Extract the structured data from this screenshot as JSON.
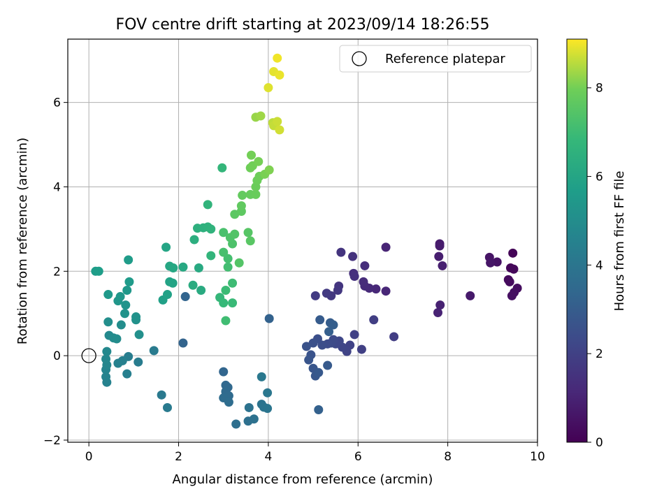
{
  "chart_data": {
    "type": "scatter",
    "title": "FOV centre drift starting at 2023/09/14 18:26:55",
    "xlabel": "Angular distance from reference (arcmin)",
    "ylabel": "Rotation from reference (arcmin)",
    "xlim": [
      -0.47,
      10
    ],
    "ylim": [
      -2.05,
      7.5
    ],
    "xticks": [
      0,
      2,
      4,
      6,
      8,
      10
    ],
    "yticks": [
      -2,
      0,
      2,
      4,
      6
    ],
    "grid": true,
    "legend": {
      "position": "top-right",
      "entries": [
        "Reference platepar"
      ]
    },
    "reference_point": {
      "x": 0,
      "y": 0
    },
    "colorbar": {
      "label": "Hours from first FF file",
      "colormap": "viridis",
      "range": [
        0,
        9.1
      ],
      "ticks": [
        0,
        2,
        4,
        6,
        8
      ]
    },
    "points": [
      {
        "x": 9.45,
        "y": 2.43,
        "c": 0.1
      },
      {
        "x": 9.4,
        "y": 2.08,
        "c": 0.15
      },
      {
        "x": 9.47,
        "y": 2.05,
        "c": 0.2
      },
      {
        "x": 9.35,
        "y": 1.8,
        "c": 0.25
      },
      {
        "x": 9.38,
        "y": 1.75,
        "c": 0.3
      },
      {
        "x": 9.55,
        "y": 1.6,
        "c": 0.35
      },
      {
        "x": 9.48,
        "y": 1.5,
        "c": 0.4
      },
      {
        "x": 9.43,
        "y": 1.42,
        "c": 0.45
      },
      {
        "x": 9.1,
        "y": 2.22,
        "c": 0.5
      },
      {
        "x": 8.93,
        "y": 2.33,
        "c": 0.55
      },
      {
        "x": 8.95,
        "y": 2.2,
        "c": 0.6
      },
      {
        "x": 8.5,
        "y": 1.42,
        "c": 0.7
      },
      {
        "x": 7.82,
        "y": 2.65,
        "c": 0.75
      },
      {
        "x": 7.82,
        "y": 2.6,
        "c": 0.8
      },
      {
        "x": 7.8,
        "y": 2.35,
        "c": 0.85
      },
      {
        "x": 7.88,
        "y": 2.13,
        "c": 0.9
      },
      {
        "x": 7.83,
        "y": 1.2,
        "c": 0.95
      },
      {
        "x": 7.78,
        "y": 1.02,
        "c": 1.0
      },
      {
        "x": 6.62,
        "y": 2.57,
        "c": 1.05
      },
      {
        "x": 6.62,
        "y": 1.53,
        "c": 1.1
      },
      {
        "x": 6.4,
        "y": 1.58,
        "c": 1.15
      },
      {
        "x": 6.25,
        "y": 1.6,
        "c": 1.2
      },
      {
        "x": 6.15,
        "y": 1.65,
        "c": 1.25
      },
      {
        "x": 6.12,
        "y": 1.75,
        "c": 1.3
      },
      {
        "x": 6.15,
        "y": 2.13,
        "c": 1.35
      },
      {
        "x": 5.9,
        "y": 1.95,
        "c": 1.4
      },
      {
        "x": 5.92,
        "y": 1.88,
        "c": 1.45
      },
      {
        "x": 5.88,
        "y": 2.35,
        "c": 1.5
      },
      {
        "x": 5.62,
        "y": 2.45,
        "c": 1.55
      },
      {
        "x": 5.57,
        "y": 1.65,
        "c": 1.6
      },
      {
        "x": 5.55,
        "y": 1.55,
        "c": 1.65
      },
      {
        "x": 5.4,
        "y": 1.42,
        "c": 1.7
      },
      {
        "x": 5.3,
        "y": 1.48,
        "c": 1.75
      },
      {
        "x": 5.05,
        "y": 1.42,
        "c": 1.8
      },
      {
        "x": 6.8,
        "y": 0.45,
        "c": 1.85
      },
      {
        "x": 6.35,
        "y": 0.85,
        "c": 1.9
      },
      {
        "x": 6.08,
        "y": 0.15,
        "c": 1.95
      },
      {
        "x": 5.92,
        "y": 0.5,
        "c": 2.0
      },
      {
        "x": 5.82,
        "y": 0.25,
        "c": 2.05
      },
      {
        "x": 5.75,
        "y": 0.1,
        "c": 2.1
      },
      {
        "x": 5.65,
        "y": 0.2,
        "c": 2.15
      },
      {
        "x": 5.58,
        "y": 0.35,
        "c": 2.2
      },
      {
        "x": 5.5,
        "y": 0.28,
        "c": 2.25
      },
      {
        "x": 5.45,
        "y": 0.38,
        "c": 2.3
      },
      {
        "x": 5.4,
        "y": 0.3,
        "c": 2.35
      },
      {
        "x": 5.32,
        "y": 0.28,
        "c": 2.4
      },
      {
        "x": 5.2,
        "y": 0.25,
        "c": 2.45
      },
      {
        "x": 5.1,
        "y": 0.4,
        "c": 2.5
      },
      {
        "x": 5.0,
        "y": 0.3,
        "c": 2.55
      },
      {
        "x": 4.85,
        "y": 0.22,
        "c": 2.6
      },
      {
        "x": 4.95,
        "y": 0.02,
        "c": 2.65
      },
      {
        "x": 4.9,
        "y": -0.1,
        "c": 2.7
      },
      {
        "x": 5.0,
        "y": -0.3,
        "c": 2.75
      },
      {
        "x": 5.05,
        "y": -0.48,
        "c": 2.8
      },
      {
        "x": 5.12,
        "y": -0.4,
        "c": 2.85
      },
      {
        "x": 5.32,
        "y": -0.23,
        "c": 2.9
      },
      {
        "x": 5.15,
        "y": 0.85,
        "c": 2.95
      },
      {
        "x": 5.38,
        "y": 0.78,
        "c": 3.0
      },
      {
        "x": 5.45,
        "y": 0.73,
        "c": 3.05
      },
      {
        "x": 5.35,
        "y": 0.57,
        "c": 3.1
      },
      {
        "x": 5.12,
        "y": -1.28,
        "c": 3.15
      },
      {
        "x": 4.02,
        "y": 0.88,
        "c": 3.2
      },
      {
        "x": 2.1,
        "y": 0.3,
        "c": 3.25
      },
      {
        "x": 2.15,
        "y": 1.4,
        "c": 3.3
      },
      {
        "x": 3.0,
        "y": -0.38,
        "c": 3.35
      },
      {
        "x": 3.05,
        "y": -0.7,
        "c": 3.4
      },
      {
        "x": 3.1,
        "y": -0.75,
        "c": 3.45
      },
      {
        "x": 3.05,
        "y": -0.85,
        "c": 3.5
      },
      {
        "x": 3.12,
        "y": -0.95,
        "c": 3.55
      },
      {
        "x": 3.0,
        "y": -1.0,
        "c": 3.6
      },
      {
        "x": 3.12,
        "y": -1.1,
        "c": 3.65
      },
      {
        "x": 3.28,
        "y": -1.62,
        "c": 3.7
      },
      {
        "x": 3.55,
        "y": -1.55,
        "c": 3.75
      },
      {
        "x": 3.68,
        "y": -1.5,
        "c": 3.8
      },
      {
        "x": 3.57,
        "y": -1.23,
        "c": 3.85
      },
      {
        "x": 3.85,
        "y": -1.15,
        "c": 3.9
      },
      {
        "x": 3.9,
        "y": -1.22,
        "c": 3.95
      },
      {
        "x": 3.98,
        "y": -1.25,
        "c": 4.0
      },
      {
        "x": 3.98,
        "y": -0.88,
        "c": 4.05
      },
      {
        "x": 3.85,
        "y": -0.5,
        "c": 4.1
      },
      {
        "x": 1.62,
        "y": -0.93,
        "c": 4.15
      },
      {
        "x": 1.75,
        "y": -1.23,
        "c": 4.2
      },
      {
        "x": 1.45,
        "y": 0.12,
        "c": 4.25
      },
      {
        "x": 1.1,
        "y": -0.15,
        "c": 4.3
      },
      {
        "x": 0.88,
        "y": -0.02,
        "c": 4.35
      },
      {
        "x": 0.85,
        "y": -0.43,
        "c": 4.4
      },
      {
        "x": 0.75,
        "y": -0.12,
        "c": 4.45
      },
      {
        "x": 0.65,
        "y": -0.18,
        "c": 4.5
      },
      {
        "x": 0.4,
        "y": -0.63,
        "c": 4.55
      },
      {
        "x": 0.38,
        "y": -0.5,
        "c": 4.6
      },
      {
        "x": 0.38,
        "y": -0.33,
        "c": 4.65
      },
      {
        "x": 0.4,
        "y": -0.22,
        "c": 4.7
      },
      {
        "x": 0.38,
        "y": -0.08,
        "c": 4.75
      },
      {
        "x": 0.4,
        "y": 0.1,
        "c": 4.8
      },
      {
        "x": 0.45,
        "y": 0.48,
        "c": 4.85
      },
      {
        "x": 0.55,
        "y": 0.42,
        "c": 4.9
      },
      {
        "x": 0.62,
        "y": 0.4,
        "c": 4.95
      },
      {
        "x": 0.72,
        "y": 0.73,
        "c": 5.0
      },
      {
        "x": 0.43,
        "y": 0.8,
        "c": 5.05
      },
      {
        "x": 1.12,
        "y": 0.5,
        "c": 5.1
      },
      {
        "x": 1.05,
        "y": 0.85,
        "c": 5.15
      },
      {
        "x": 1.05,
        "y": 0.92,
        "c": 5.2
      },
      {
        "x": 0.8,
        "y": 1.0,
        "c": 5.25
      },
      {
        "x": 0.82,
        "y": 1.2,
        "c": 5.3
      },
      {
        "x": 0.65,
        "y": 1.3,
        "c": 5.35
      },
      {
        "x": 0.7,
        "y": 1.4,
        "c": 5.4
      },
      {
        "x": 0.85,
        "y": 1.55,
        "c": 5.45
      },
      {
        "x": 0.43,
        "y": 1.45,
        "c": 5.5
      },
      {
        "x": 0.9,
        "y": 1.75,
        "c": 5.55
      },
      {
        "x": 0.88,
        "y": 2.27,
        "c": 5.6
      },
      {
        "x": 0.15,
        "y": 2.0,
        "c": 5.65
      },
      {
        "x": 0.22,
        "y": 2.0,
        "c": 5.7
      },
      {
        "x": 1.65,
        "y": 1.32,
        "c": 5.8
      },
      {
        "x": 1.75,
        "y": 1.45,
        "c": 5.85
      },
      {
        "x": 1.8,
        "y": 1.75,
        "c": 5.9
      },
      {
        "x": 1.87,
        "y": 1.72,
        "c": 5.95
      },
      {
        "x": 1.72,
        "y": 2.57,
        "c": 6.0
      },
      {
        "x": 1.8,
        "y": 2.12,
        "c": 6.05
      },
      {
        "x": 1.88,
        "y": 2.08,
        "c": 6.1
      },
      {
        "x": 2.1,
        "y": 2.1,
        "c": 6.15
      },
      {
        "x": 2.45,
        "y": 2.08,
        "c": 6.2
      },
      {
        "x": 2.5,
        "y": 1.55,
        "c": 6.25
      },
      {
        "x": 2.32,
        "y": 1.67,
        "c": 6.3
      },
      {
        "x": 2.35,
        "y": 2.75,
        "c": 6.4
      },
      {
        "x": 2.42,
        "y": 3.02,
        "c": 6.45
      },
      {
        "x": 2.55,
        "y": 3.03,
        "c": 6.5
      },
      {
        "x": 2.65,
        "y": 3.05,
        "c": 6.55
      },
      {
        "x": 2.72,
        "y": 3.0,
        "c": 6.6
      },
      {
        "x": 2.65,
        "y": 3.58,
        "c": 6.65
      },
      {
        "x": 2.72,
        "y": 2.37,
        "c": 6.7
      },
      {
        "x": 2.97,
        "y": 4.45,
        "c": 6.75
      },
      {
        "x": 2.92,
        "y": 1.38,
        "c": 6.8
      },
      {
        "x": 3.0,
        "y": 1.25,
        "c": 6.85
      },
      {
        "x": 3.2,
        "y": 1.25,
        "c": 6.9
      },
      {
        "x": 3.05,
        "y": 1.55,
        "c": 6.95
      },
      {
        "x": 3.2,
        "y": 1.72,
        "c": 7.0
      },
      {
        "x": 3.05,
        "y": 0.83,
        "c": 7.05
      },
      {
        "x": 3.1,
        "y": 2.1,
        "c": 7.1
      },
      {
        "x": 3.1,
        "y": 2.3,
        "c": 7.15
      },
      {
        "x": 3.0,
        "y": 2.45,
        "c": 7.2
      },
      {
        "x": 3.0,
        "y": 2.92,
        "c": 7.25
      },
      {
        "x": 3.2,
        "y": 2.65,
        "c": 7.3
      },
      {
        "x": 3.15,
        "y": 2.8,
        "c": 7.35
      },
      {
        "x": 3.25,
        "y": 2.88,
        "c": 7.4
      },
      {
        "x": 3.35,
        "y": 2.2,
        "c": 7.45
      },
      {
        "x": 3.55,
        "y": 2.92,
        "c": 7.5
      },
      {
        "x": 3.6,
        "y": 2.72,
        "c": 7.55
      },
      {
        "x": 3.25,
        "y": 3.35,
        "c": 7.6
      },
      {
        "x": 3.4,
        "y": 3.42,
        "c": 7.65
      },
      {
        "x": 3.4,
        "y": 3.55,
        "c": 7.7
      },
      {
        "x": 3.42,
        "y": 3.8,
        "c": 7.75
      },
      {
        "x": 3.6,
        "y": 3.82,
        "c": 7.8
      },
      {
        "x": 3.72,
        "y": 3.82,
        "c": 7.85
      },
      {
        "x": 3.72,
        "y": 4.0,
        "c": 7.88
      },
      {
        "x": 3.75,
        "y": 4.15,
        "c": 7.9
      },
      {
        "x": 3.8,
        "y": 4.25,
        "c": 7.92
      },
      {
        "x": 3.6,
        "y": 4.45,
        "c": 7.95
      },
      {
        "x": 3.65,
        "y": 4.5,
        "c": 7.98
      },
      {
        "x": 3.62,
        "y": 4.75,
        "c": 8.0
      },
      {
        "x": 3.78,
        "y": 4.6,
        "c": 8.02
      },
      {
        "x": 3.92,
        "y": 4.3,
        "c": 8.05
      },
      {
        "x": 4.02,
        "y": 4.4,
        "c": 8.1
      },
      {
        "x": 3.72,
        "y": 5.65,
        "c": 8.3
      },
      {
        "x": 3.83,
        "y": 5.68,
        "c": 8.35
      },
      {
        "x": 4.1,
        "y": 5.52,
        "c": 8.6
      },
      {
        "x": 4.12,
        "y": 5.45,
        "c": 8.65
      },
      {
        "x": 4.2,
        "y": 5.55,
        "c": 8.7
      },
      {
        "x": 4.25,
        "y": 5.35,
        "c": 8.75
      },
      {
        "x": 4.0,
        "y": 6.35,
        "c": 8.85
      },
      {
        "x": 4.12,
        "y": 6.73,
        "c": 8.9
      },
      {
        "x": 4.25,
        "y": 6.65,
        "c": 8.95
      },
      {
        "x": 4.2,
        "y": 7.05,
        "c": 9.0
      }
    ]
  }
}
